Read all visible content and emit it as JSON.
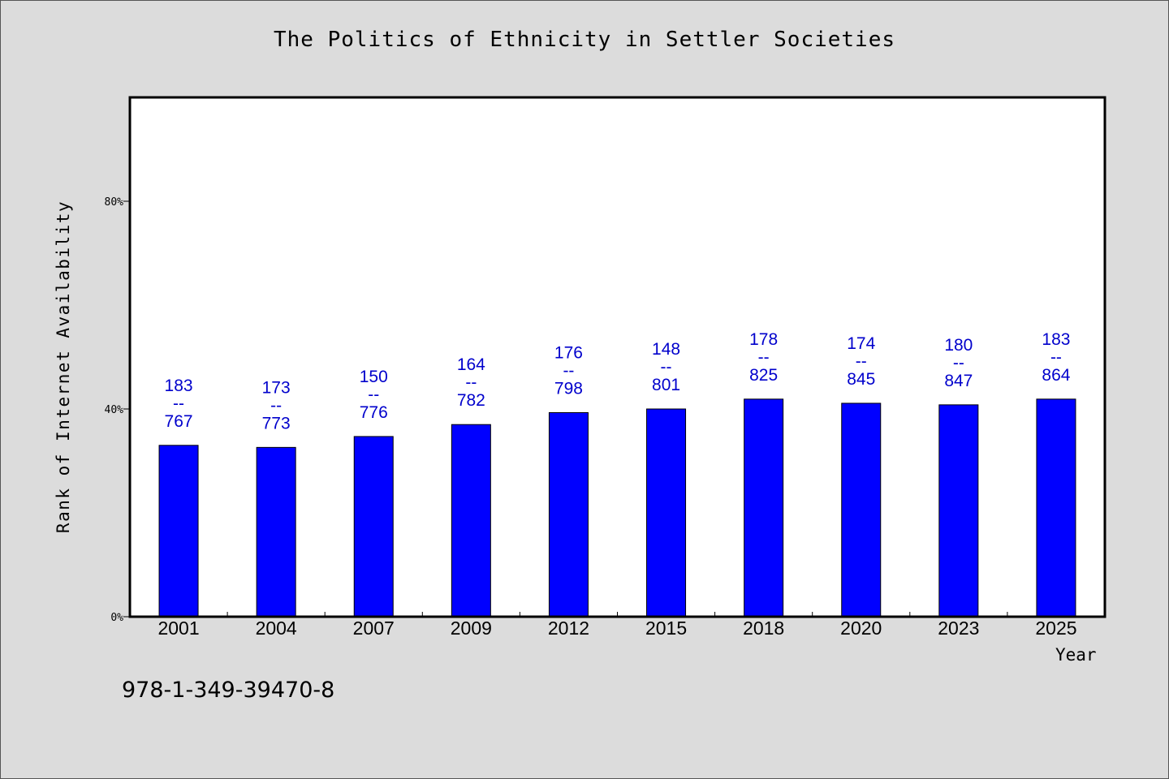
{
  "chart_data": {
    "type": "bar",
    "title": "The Politics of Ethnicity in Settler Societies",
    "xlabel": "Year",
    "ylabel": "Rank of Internet Availability",
    "categories": [
      "2001",
      "2004",
      "2007",
      "2009",
      "2012",
      "2015",
      "2018",
      "2020",
      "2023",
      "2025"
    ],
    "values": [
      33,
      32.6,
      34.7,
      37,
      39.3,
      40,
      41.9,
      41.1,
      40.8,
      41.9
    ],
    "data_labels": [
      {
        "top": "183",
        "sep": "--",
        "bottom": "767"
      },
      {
        "top": "173",
        "sep": "--",
        "bottom": "773"
      },
      {
        "top": "150",
        "sep": "--",
        "bottom": "776"
      },
      {
        "top": "164",
        "sep": "--",
        "bottom": "782"
      },
      {
        "top": "176",
        "sep": "--",
        "bottom": "798"
      },
      {
        "top": "148",
        "sep": "--",
        "bottom": "801"
      },
      {
        "top": "178",
        "sep": "--",
        "bottom": "825"
      },
      {
        "top": "174",
        "sep": "--",
        "bottom": "845"
      },
      {
        "top": "180",
        "sep": "--",
        "bottom": "847"
      },
      {
        "top": "183",
        "sep": "--",
        "bottom": "864"
      }
    ],
    "ylim": [
      0,
      100
    ],
    "yticks": [
      {
        "value": 0,
        "label": "0%"
      },
      {
        "value": 40,
        "label": "40%"
      },
      {
        "value": 80,
        "label": "80%"
      }
    ],
    "grid": false,
    "legend": "none",
    "bar_color": "#0000ff",
    "label_color": "#0000cc"
  },
  "footnote": "978-1-349-39470-8",
  "colors": {
    "background": "#dcdcdc",
    "plot_background": "#ffffff"
  }
}
